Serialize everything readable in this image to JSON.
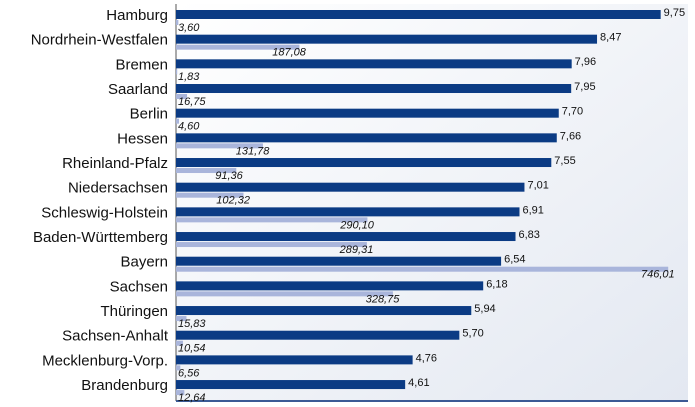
{
  "chart_data": {
    "type": "bar",
    "orientation": "horizontal",
    "categories": [
      "Hamburg",
      "Nordrhein-Westfalen",
      "Bremen",
      "Saarland",
      "Berlin",
      "Hessen",
      "Rheinland-Pfalz",
      "Niedersachsen",
      "Schleswig-Holstein",
      "Baden-Württemberg",
      "Bayern",
      "Sachsen",
      "Thüringen",
      "Sachsen-Anhalt",
      "Mecklenburg-Vorp.",
      "Brandenburg"
    ],
    "series": [
      {
        "color": "#0b3b84",
        "values": [
          9.75,
          8.47,
          7.96,
          7.95,
          7.7,
          7.66,
          7.55,
          7.01,
          6.91,
          6.83,
          6.54,
          6.18,
          5.94,
          5.7,
          4.76,
          4.61
        ],
        "value_labels": [
          "9,75",
          "8,47",
          "7,96",
          "7,95",
          "7,70",
          "7,66",
          "7,55",
          "7,01",
          "6,91",
          "6,83",
          "6,54",
          "6,18",
          "5,94",
          "5,70",
          "4,76",
          "4,61"
        ]
      },
      {
        "color": "#a9b5db",
        "axis": "x2",
        "values": [
          3.6,
          187.08,
          1.83,
          16.75,
          4.6,
          131.78,
          91.36,
          102.32,
          290.1,
          289.31,
          746.01,
          328.75,
          15.83,
          10.54,
          6.56,
          12.64
        ],
        "value_labels": [
          "3,60",
          "187,08",
          "1,83",
          "16,75",
          "4,60",
          "131,78",
          "91,36",
          "102,32",
          "290,10",
          "289,31",
          "746,01",
          "328,75",
          "15,83",
          "10,54",
          "6,56",
          "12,64"
        ]
      }
    ],
    "xlim": [
      0,
      10.3
    ],
    "x2lim": [
      0,
      776
    ]
  }
}
